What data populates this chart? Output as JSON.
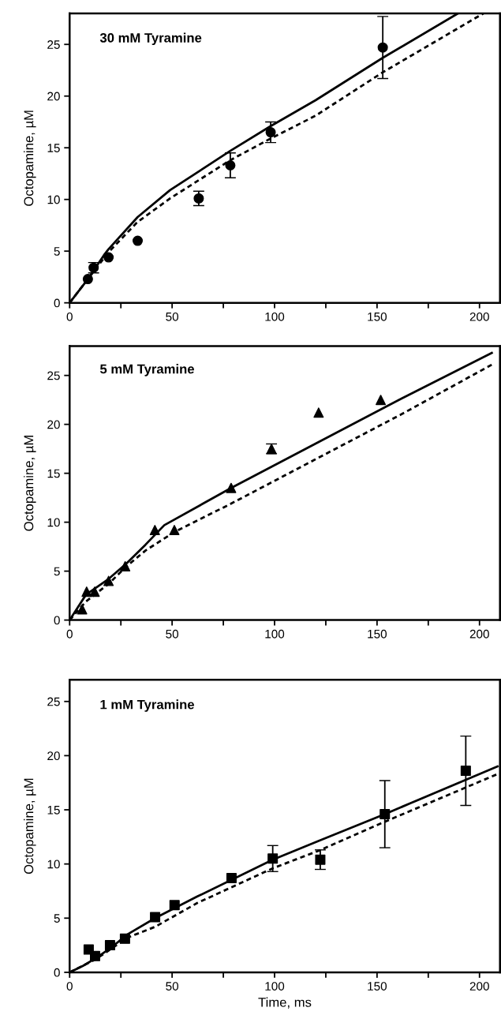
{
  "chart_data": [
    {
      "type": "line",
      "title": "30 mM Tyramine",
      "ylabel": "Octopamine, µM",
      "xlim": [
        0,
        210
      ],
      "ylim": [
        0,
        28
      ],
      "xticks": [
        0,
        {
          "value": 25,
          "label": null
        },
        50,
        {
          "value": 75,
          "label": null
        },
        100,
        {
          "value": 125,
          "label": null
        },
        150,
        {
          "value": 175,
          "label": null
        },
        200
      ],
      "yticks": [
        0,
        5,
        10,
        15,
        20,
        25
      ],
      "grid": false,
      "legend": false,
      "series": [
        {
          "type": "scatter",
          "color": "#000000",
          "marker": "circle",
          "x": [
            8.9,
            11.7,
            19,
            33.2,
            63,
            78.4,
            98.1,
            152.8
          ],
          "values": [
            2.3,
            3.4,
            4.4,
            6.0,
            10.1,
            13.3,
            16.5,
            24.7
          ],
          "errors": [
            null,
            0.5,
            null,
            null,
            0.7,
            1.2,
            1.0,
            3.0
          ]
        },
        {
          "color": "#000000",
          "line_style": "solid",
          "x": [
            0,
            8.9,
            16.7,
            19,
            33.2,
            49,
            78.4,
            98.1,
            120,
            152.8,
            189.5
          ],
          "values": [
            0,
            2.3,
            4.6,
            5.2,
            8.3,
            10.9,
            14.7,
            17.1,
            19.6,
            23.7,
            28
          ]
        },
        {
          "color": "#000000",
          "line_style": "dashed",
          "x": [
            0,
            12,
            19,
            33,
            49,
            78.4,
            98.1,
            120,
            152.8,
            201.9
          ],
          "values": [
            0,
            3.1,
            4.9,
            7.8,
            10.1,
            13.8,
            15.9,
            18.1,
            22.3,
            28
          ]
        }
      ]
    },
    {
      "type": "line",
      "title": "5 mM Tyramine",
      "ylabel": "Octopamine, µM",
      "xlim": [
        0,
        210
      ],
      "ylim": [
        0,
        28
      ],
      "xticks": [
        0,
        {
          "value": 25,
          "label": null
        },
        50,
        {
          "value": 75,
          "label": null
        },
        100,
        {
          "value": 125,
          "label": null
        },
        150,
        {
          "value": 175,
          "label": null
        },
        200
      ],
      "yticks": [
        0,
        5,
        10,
        15,
        20,
        25
      ],
      "grid": false,
      "legend": false,
      "series": [
        {
          "type": "scatter",
          "color": "#000000",
          "marker": "triangle",
          "x": [
            6.1,
            8.3,
            12.2,
            19,
            27.1,
            41.6,
            51.1,
            78.8,
            98.5,
            121.5,
            151.8
          ],
          "values": [
            1.1,
            2.9,
            2.9,
            4.0,
            5.5,
            9.2,
            9.2,
            13.5,
            17.5,
            21.2,
            22.5
          ],
          "errors": [
            null,
            null,
            null,
            null,
            null,
            null,
            null,
            null,
            0.5,
            null,
            null
          ]
        },
        {
          "color": "#000000",
          "line_style": "solid",
          "x": [
            0,
            8,
            19,
            27.8,
            37,
            46.2,
            78.8,
            119.7,
            162.5,
            206
          ],
          "values": [
            0,
            2.6,
            4.2,
            5.8,
            7.7,
            9.7,
            13.5,
            18.0,
            22.7,
            27.3
          ]
        },
        {
          "color": "#000000",
          "line_style": "dashed",
          "x": [
            0,
            8,
            19,
            27.8,
            37,
            51.1,
            78.8,
            119.7,
            162.5,
            206
          ],
          "values": [
            0,
            1.9,
            3.7,
            5.5,
            7.1,
            9.0,
            11.9,
            16.4,
            21.1,
            26.1
          ]
        }
      ]
    },
    {
      "type": "line",
      "title": "1 mM Tyramine",
      "xlabel": "Time, ms",
      "ylabel": "Octopamine, µM",
      "xlim": [
        0,
        210
      ],
      "ylim": [
        0,
        27
      ],
      "xticks": [
        0,
        {
          "value": 25,
          "label": null
        },
        50,
        {
          "value": 75,
          "label": null
        },
        100,
        {
          "value": 125,
          "label": null
        },
        150,
        {
          "value": 175,
          "label": null
        },
        200
      ],
      "yticks": [
        0,
        5,
        10,
        15,
        20,
        25
      ],
      "grid": false,
      "legend": false,
      "series": [
        {
          "type": "scatter",
          "color": "#000000",
          "marker": "square",
          "x": [
            9.3,
            12.4,
            19.7,
            27,
            41.7,
            51.2,
            79,
            99.1,
            122.3,
            153.8,
            193.3
          ],
          "values": [
            2.1,
            1.5,
            2.5,
            3.1,
            5.1,
            6.2,
            8.7,
            10.5,
            10.4,
            14.6,
            18.6
          ],
          "errors": [
            null,
            null,
            null,
            null,
            null,
            null,
            null,
            1.2,
            0.9,
            3.1,
            3.2
          ]
        },
        {
          "color": "#000000",
          "line_style": "solid",
          "x": [
            0,
            6.5,
            12.7,
            19.7,
            28.2,
            41.7,
            62.3,
            99.1,
            121.2,
            153.8,
            166.2,
            208.8
          ],
          "values": [
            0,
            0.6,
            1.3,
            2.2,
            3.5,
            5.0,
            7.0,
            10.4,
            12.1,
            14.6,
            15.6,
            19.0
          ]
        },
        {
          "color": "#000000",
          "line_style": "dashed",
          "x": [
            0,
            12.7,
            28.2,
            41.7,
            62.3,
            99.1,
            121.2,
            153.8,
            208.8
          ],
          "values": [
            0,
            1.2,
            3.2,
            4.2,
            6.4,
            9.6,
            11.2,
            13.9,
            18.3
          ]
        }
      ]
    }
  ]
}
